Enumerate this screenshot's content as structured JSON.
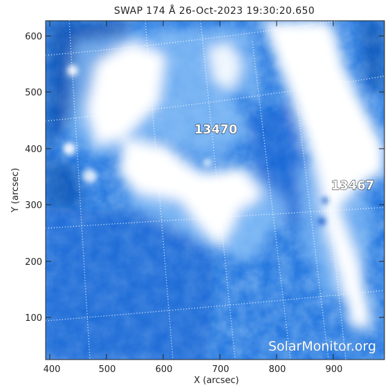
{
  "title": "SWAP 174 Å 26-Oct-2023 19:30:20.650",
  "xlabel": "X (arcsec)",
  "ylabel": "Y (arcsec)",
  "xticks": [
    "400",
    "500",
    "600",
    "700",
    "800",
    "900"
  ],
  "yticks": [
    "100",
    "200",
    "300",
    "400",
    "500",
    "600"
  ],
  "regions": [
    {
      "label": "13470"
    },
    {
      "label": "13467"
    }
  ],
  "watermark": "SolarMonitor.org",
  "colors": {
    "dark": "#0a3f9e",
    "mid": "#2a7be0",
    "light": "#8cc2f7",
    "bright": "#ffffff",
    "grid": "#ffffff"
  }
}
